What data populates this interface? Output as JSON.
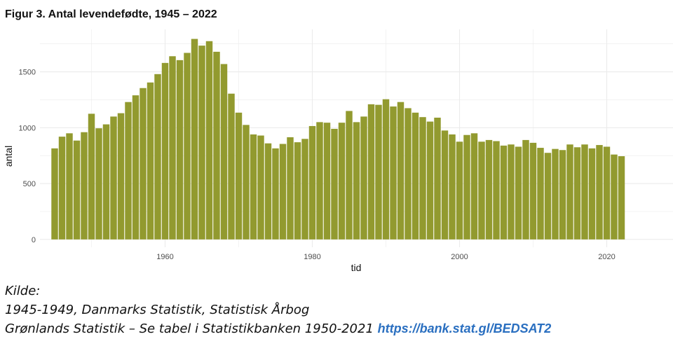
{
  "title": "Figur 3. Antal levendefødte, 1945 – 2022",
  "colors": {
    "bar": "#929a2f",
    "grid": "#ebebeb",
    "axis_text": "#4d4d4d",
    "link": "#2a6fc0"
  },
  "chart_data": {
    "type": "bar",
    "xlabel": "tid",
    "ylabel": "antal",
    "xlim": [
      1943,
      2029
    ],
    "ylim": [
      -70,
      1880
    ],
    "x_ticks": [
      1960,
      1980,
      2000,
      2020
    ],
    "y_ticks": [
      0,
      500,
      1000,
      1500
    ],
    "grid": true,
    "x": [
      1945,
      1946,
      1947,
      1948,
      1949,
      1950,
      1951,
      1952,
      1953,
      1954,
      1955,
      1956,
      1957,
      1958,
      1959,
      1960,
      1961,
      1962,
      1963,
      1964,
      1965,
      1966,
      1967,
      1968,
      1969,
      1970,
      1971,
      1972,
      1973,
      1974,
      1975,
      1976,
      1977,
      1978,
      1979,
      1980,
      1981,
      1982,
      1983,
      1984,
      1985,
      1986,
      1987,
      1988,
      1989,
      1990,
      1991,
      1992,
      1993,
      1994,
      1995,
      1996,
      1997,
      1998,
      1999,
      2000,
      2001,
      2002,
      2003,
      2004,
      2005,
      2006,
      2007,
      2008,
      2009,
      2010,
      2011,
      2012,
      2013,
      2014,
      2015,
      2016,
      2017,
      2018,
      2019,
      2020,
      2021,
      2022
    ],
    "values": [
      815,
      920,
      950,
      885,
      960,
      1125,
      995,
      1030,
      1100,
      1130,
      1230,
      1290,
      1355,
      1405,
      1480,
      1580,
      1640,
      1605,
      1670,
      1795,
      1735,
      1775,
      1680,
      1570,
      1305,
      1135,
      1025,
      940,
      930,
      860,
      815,
      855,
      915,
      870,
      900,
      1015,
      1050,
      1045,
      990,
      1045,
      1150,
      1050,
      1100,
      1210,
      1205,
      1255,
      1190,
      1230,
      1175,
      1135,
      1095,
      1055,
      1090,
      975,
      940,
      875,
      935,
      950,
      875,
      890,
      880,
      840,
      850,
      830,
      890,
      865,
      820,
      775,
      810,
      800,
      850,
      825,
      850,
      815,
      845,
      830,
      760,
      745
    ]
  },
  "source": {
    "line1": "Kilde:",
    "line2": "1945-1949, Danmarks Statistik, Statistisk Årbog",
    "line3": "Grønlands Statistik – Se tabel i Statistikbanken 1950-2021 ",
    "link": "https://bank.stat.gl/BEDSAT2"
  }
}
